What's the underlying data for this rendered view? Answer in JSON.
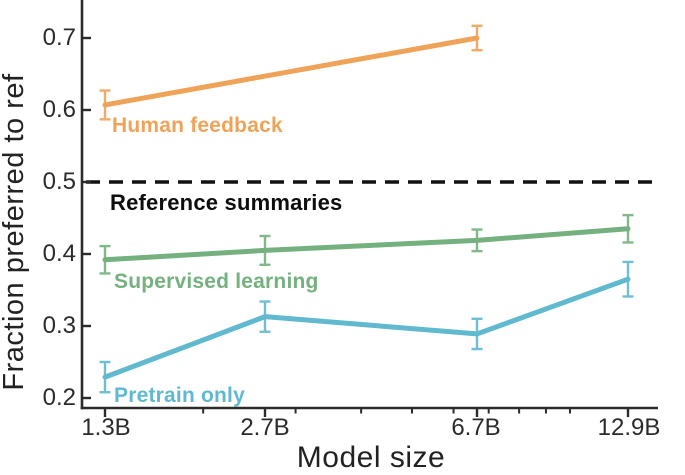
{
  "chart_data": {
    "type": "line",
    "title": "",
    "xlabel": "Model size",
    "ylabel": "Fraction preferred to ref",
    "x_scale": "log",
    "grid": false,
    "legend": "inline-labels",
    "categories": [
      "1.3B",
      "2.7B",
      "6.7B",
      "12.9B"
    ],
    "category_values_billions": [
      1.3,
      2.7,
      6.7,
      12.9
    ],
    "minor_xticks_billions": [
      2,
      3,
      4,
      5,
      6,
      7,
      8,
      9,
      10
    ],
    "ytick_labels_top_to_bottom": [
      "0.7",
      "0.6",
      "0.5",
      "0.4",
      "0.3",
      "0.2"
    ],
    "ylim": [
      0.186,
      0.753
    ],
    "axis_color": "#2b2b2b",
    "series": [
      {
        "name": "Human feedback",
        "color": "#EFA358",
        "x": [
          "1.3B",
          "6.7B"
        ],
        "values": [
          0.607,
          0.7
        ],
        "error": [
          0.02,
          0.017
        ]
      },
      {
        "name": "Supervised learning",
        "color": "#74B17E",
        "x": [
          "1.3B",
          "2.7B",
          "6.7B",
          "12.9B"
        ],
        "values": [
          0.392,
          0.405,
          0.419,
          0.435
        ],
        "error": [
          0.019,
          0.02,
          0.015,
          0.019
        ]
      },
      {
        "name": "Pretrain only",
        "color": "#60B9CE",
        "x": [
          "1.3B",
          "2.7B",
          "6.7B",
          "12.9B"
        ],
        "values": [
          0.229,
          0.313,
          0.289,
          0.365
        ],
        "error": [
          0.021,
          0.021,
          0.021,
          0.024
        ]
      }
    ],
    "reference_line": {
      "label": "Reference summaries",
      "value": 0.5,
      "style": "dashed",
      "color": "#111111"
    }
  }
}
